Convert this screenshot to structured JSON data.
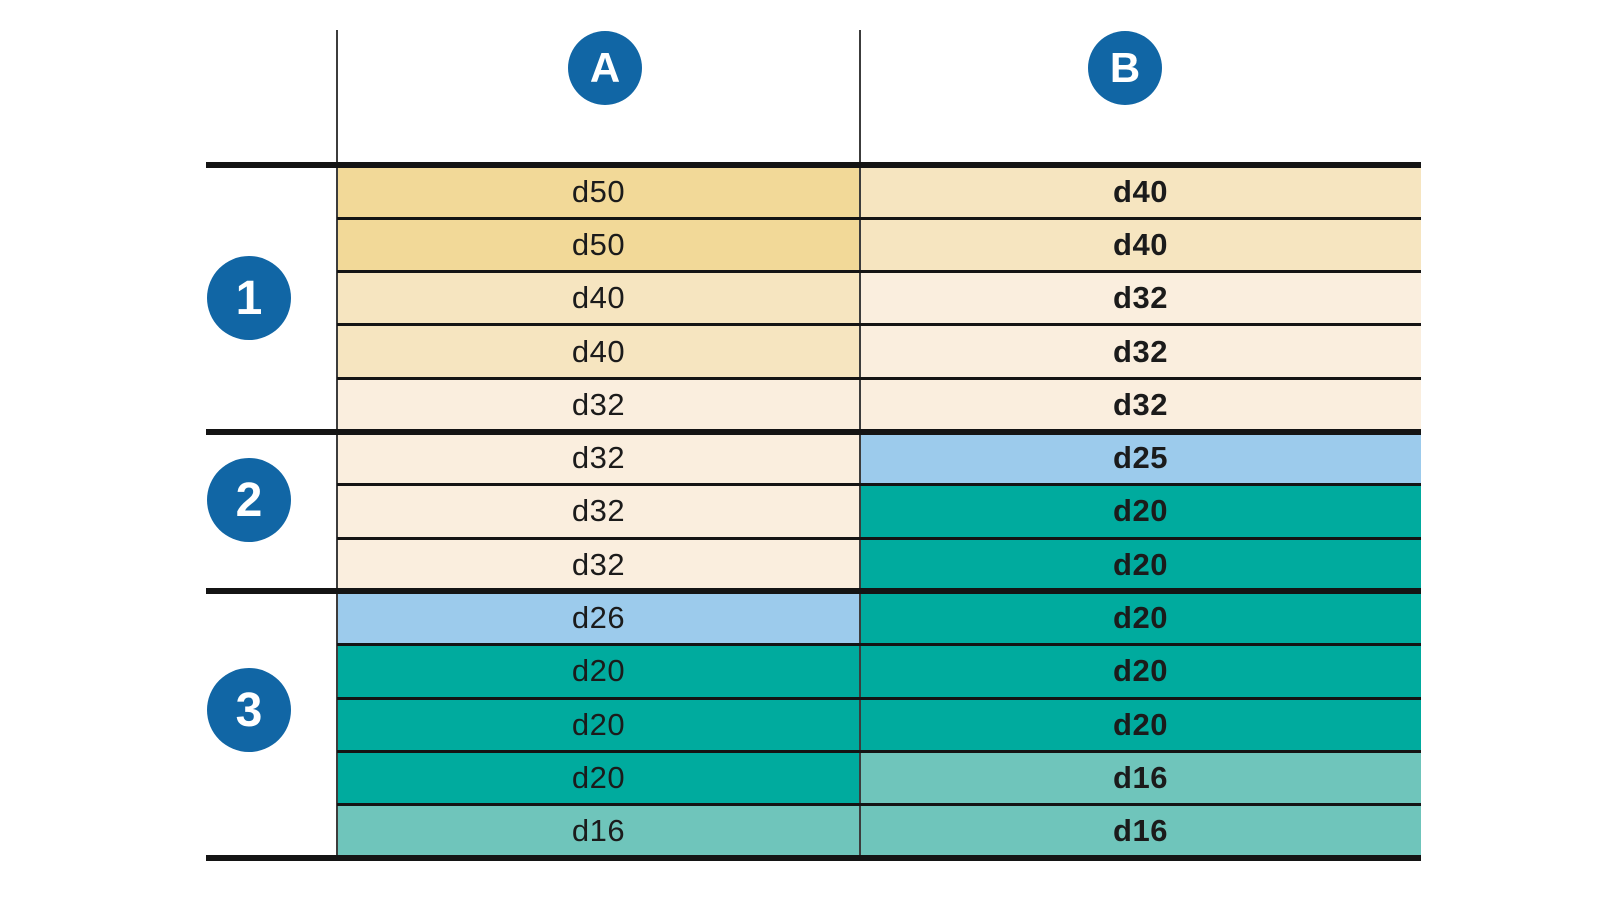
{
  "colors": {
    "badge_blue": "#1166a5",
    "badge_text": "#ffffff",
    "grid_line": "#141414",
    "divider_line": "#3c3c3c",
    "cell_text": "#1b1b1b",
    "value_colors": {
      "d50": "#f2d998",
      "d40": "#f6e5c0",
      "d32": "#faeede",
      "d26": "#9ccbec",
      "d25": "#9ccbec",
      "d20": "#00ab9e",
      "d16": "#6fc5bb"
    }
  },
  "table": {
    "column_headers": [
      "A",
      "B"
    ],
    "groups": [
      {
        "label": "1",
        "rows": [
          {
            "a": "d50",
            "b": "d40"
          },
          {
            "a": "d50",
            "b": "d40"
          },
          {
            "a": "d40",
            "b": "d32"
          },
          {
            "a": "d40",
            "b": "d32"
          },
          {
            "a": "d32",
            "b": "d32"
          }
        ]
      },
      {
        "label": "2",
        "rows": [
          {
            "a": "d32",
            "b": "d25"
          },
          {
            "a": "d32",
            "b": "d20"
          },
          {
            "a": "d32",
            "b": "d20"
          }
        ]
      },
      {
        "label": "3",
        "rows": [
          {
            "a": "d26",
            "b": "d20"
          },
          {
            "a": "d20",
            "b": "d20"
          },
          {
            "a": "d20",
            "b": "d20"
          },
          {
            "a": "d20",
            "b": "d16"
          },
          {
            "a": "d16",
            "b": "d16"
          }
        ]
      }
    ]
  },
  "chart_data": {
    "type": "table",
    "columns": [
      "A",
      "B"
    ],
    "row_groups": [
      "1",
      "2",
      "3"
    ],
    "rows_A": [
      "d50",
      "d50",
      "d40",
      "d40",
      "d32",
      "d32",
      "d32",
      "d32",
      "d26",
      "d20",
      "d20",
      "d20",
      "d16"
    ],
    "rows_B": [
      "d40",
      "d40",
      "d32",
      "d32",
      "d32",
      "d25",
      "d20",
      "d20",
      "d20",
      "d20",
      "d20",
      "d16",
      "d16"
    ],
    "group_row_counts": [
      5,
      3,
      5
    ]
  }
}
